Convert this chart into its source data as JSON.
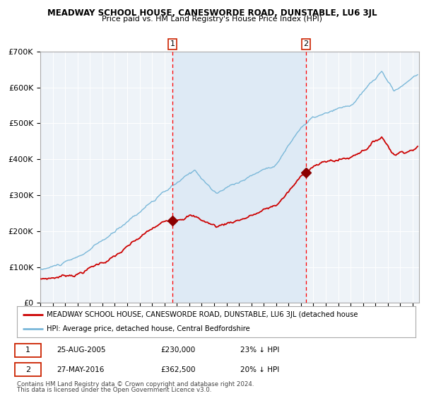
{
  "title": "MEADWAY SCHOOL HOUSE, CANESWORDE ROAD, DUNSTABLE, LU6 3JL",
  "subtitle": "Price paid vs. HM Land Registry's House Price Index (HPI)",
  "hpi_color": "#7ab8d9",
  "price_color": "#cc0000",
  "bg_color": "#ffffff",
  "shade_color": "#deeaf5",
  "ylim": [
    0,
    700000
  ],
  "yticks": [
    0,
    100000,
    200000,
    300000,
    400000,
    500000,
    600000,
    700000
  ],
  "ytick_labels": [
    "£0",
    "£100K",
    "£200K",
    "£300K",
    "£400K",
    "£500K",
    "£600K",
    "£700K"
  ],
  "sale1_date": "25-AUG-2005",
  "sale1_price": 230000,
  "sale1_label": "1",
  "sale1_x": 2005.65,
  "sale1_hpi_pct": "23%",
  "sale2_date": "27-MAY-2016",
  "sale2_price": 362500,
  "sale2_label": "2",
  "sale2_x": 2016.4,
  "sale2_hpi_pct": "20%",
  "legend_line1": "MEADWAY SCHOOL HOUSE, CANESWORDE ROAD, DUNSTABLE, LU6 3JL (detached house",
  "legend_line2": "HPI: Average price, detached house, Central Bedfordshire",
  "footer1": "Contains HM Land Registry data © Crown copyright and database right 2024.",
  "footer2": "This data is licensed under the Open Government Licence v3.0."
}
